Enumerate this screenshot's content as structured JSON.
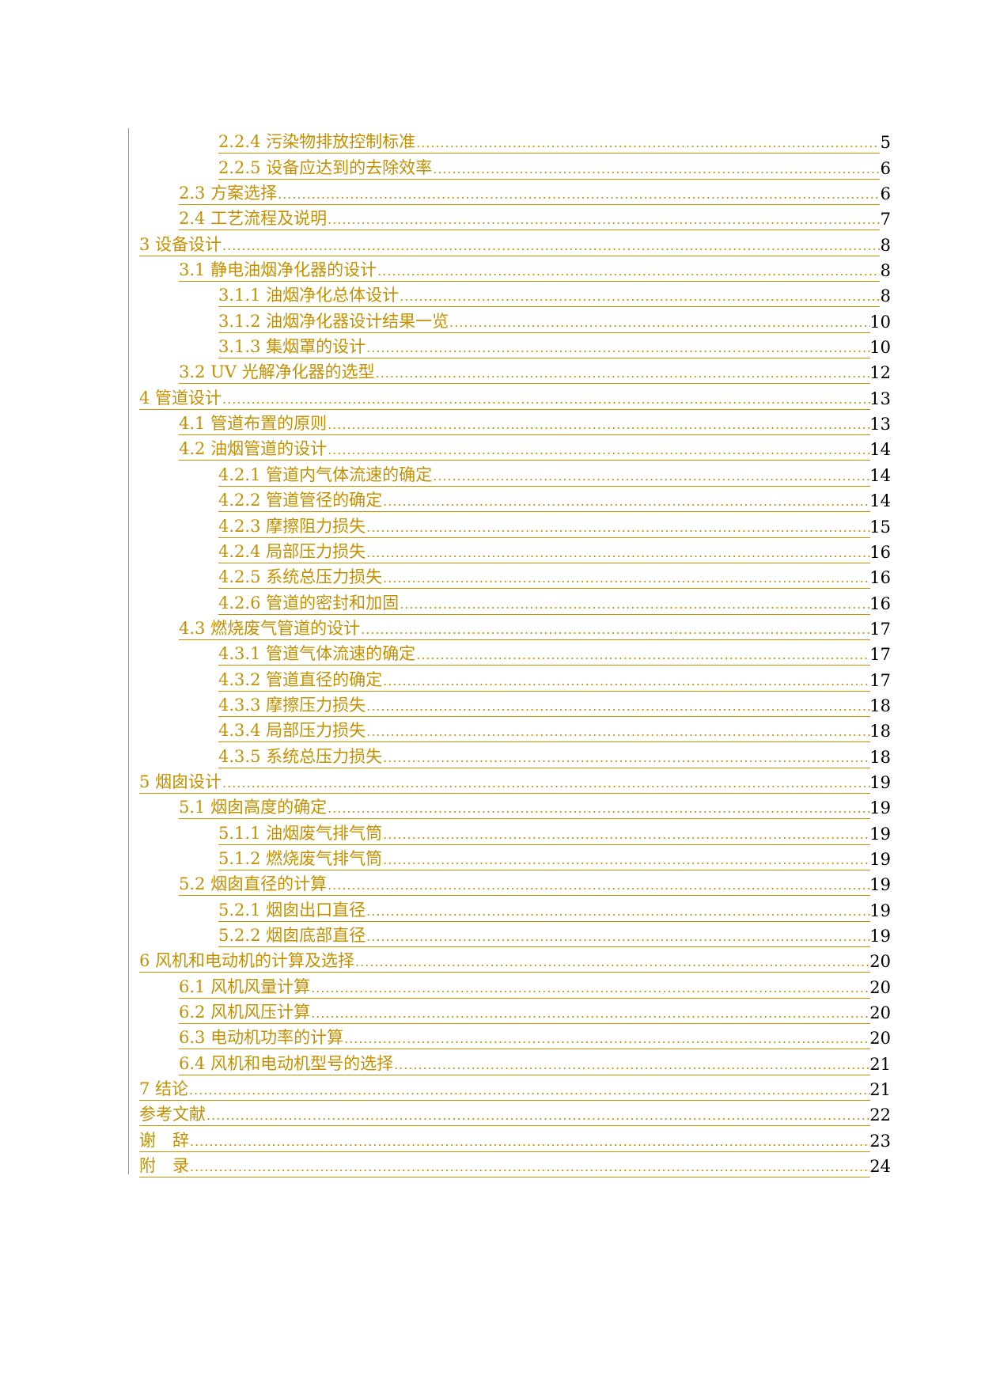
{
  "colors": {
    "link": "#c49000",
    "page_number": "#000000",
    "margin_line": "#999999"
  },
  "toc": [
    {
      "label": "2.2.4 污染物排放控制标准",
      "page": "5",
      "level": 3
    },
    {
      "label": "2.2.5 设备应达到的去除效率",
      "page": "6",
      "level": 3
    },
    {
      "label": "2.3 方案选择",
      "page": "6",
      "level": 2
    },
    {
      "label": "2.4 工艺流程及说明",
      "page": "7",
      "level": 2
    },
    {
      "label": "3 设备设计",
      "page": "8",
      "level": 1
    },
    {
      "label": "3.1 静电油烟净化器的设计",
      "page": "8",
      "level": 2
    },
    {
      "label": "3.1.1 油烟净化总体设计",
      "page": "8",
      "level": 3
    },
    {
      "label": "3.1.2 油烟净化器设计结果一览",
      "page": "10",
      "level": 3
    },
    {
      "label": "3.1.3 集烟罩的设计",
      "page": "10",
      "level": 3
    },
    {
      "label": "3.2 UV 光解净化器的选型",
      "page": "12",
      "level": 2
    },
    {
      "label": "4 管道设计",
      "page": "13",
      "level": 1
    },
    {
      "label": "4.1 管道布置的原则",
      "page": "13",
      "level": 2
    },
    {
      "label": "4.2 油烟管道的设计",
      "page": "14",
      "level": 2
    },
    {
      "label": "4.2.1 管道内气体流速的确定",
      "page": "14",
      "level": 3
    },
    {
      "label": "4.2.2 管道管径的确定",
      "page": "14",
      "level": 3
    },
    {
      "label": "4.2.3 摩擦阻力损失",
      "page": "15",
      "level": 3
    },
    {
      "label": "4.2.4 局部压力损失",
      "page": "16",
      "level": 3
    },
    {
      "label": "4.2.5 系统总压力损失",
      "page": "16",
      "level": 3
    },
    {
      "label": "4.2.6 管道的密封和加固",
      "page": "16",
      "level": 3
    },
    {
      "label": "4.3 燃烧废气管道的设计",
      "page": "17",
      "level": 2
    },
    {
      "label": "4.3.1 管道气体流速的确定",
      "page": "17",
      "level": 3
    },
    {
      "label": "4.3.2 管道直径的确定",
      "page": "17",
      "level": 3
    },
    {
      "label": "4.3.3 摩擦压力损失",
      "page": "18",
      "level": 3
    },
    {
      "label": "4.3.4 局部压力损失",
      "page": "18",
      "level": 3
    },
    {
      "label": "4.3.5 系统总压力损失",
      "page": "18",
      "level": 3
    },
    {
      "label": "5 烟囱设计",
      "page": "19",
      "level": 1
    },
    {
      "label": "5.1 烟囱高度的确定",
      "page": "19",
      "level": 2
    },
    {
      "label": "5.1.1 油烟废气排气筒",
      "page": "19",
      "level": 3
    },
    {
      "label": "5.1.2 燃烧废气排气筒",
      "page": "19",
      "level": 3
    },
    {
      "label": "5.2 烟囱直径的计算",
      "page": "19",
      "level": 2
    },
    {
      "label": "5.2.1 烟囱出口直径",
      "page": "19",
      "level": 3
    },
    {
      "label": "5.2.2 烟囱底部直径",
      "page": "19",
      "level": 3
    },
    {
      "label": "6 风机和电动机的计算及选择",
      "page": "20",
      "level": 1
    },
    {
      "label": "6.1 风机风量计算",
      "page": "20",
      "level": 2
    },
    {
      "label": "6.2 风机风压计算",
      "page": "20",
      "level": 2
    },
    {
      "label": "6.3 电动机功率的计算",
      "page": "20",
      "level": 2
    },
    {
      "label": "6.4 风机和电动机型号的选择",
      "page": "21",
      "level": 2
    },
    {
      "label": "7 结论",
      "page": "21",
      "level": 1
    },
    {
      "label": "参考文献",
      "page": "22",
      "level": 1
    },
    {
      "label": "谢　辞",
      "page": "23",
      "level": 1
    },
    {
      "label": "附　录",
      "page": "24",
      "level": 1
    }
  ]
}
